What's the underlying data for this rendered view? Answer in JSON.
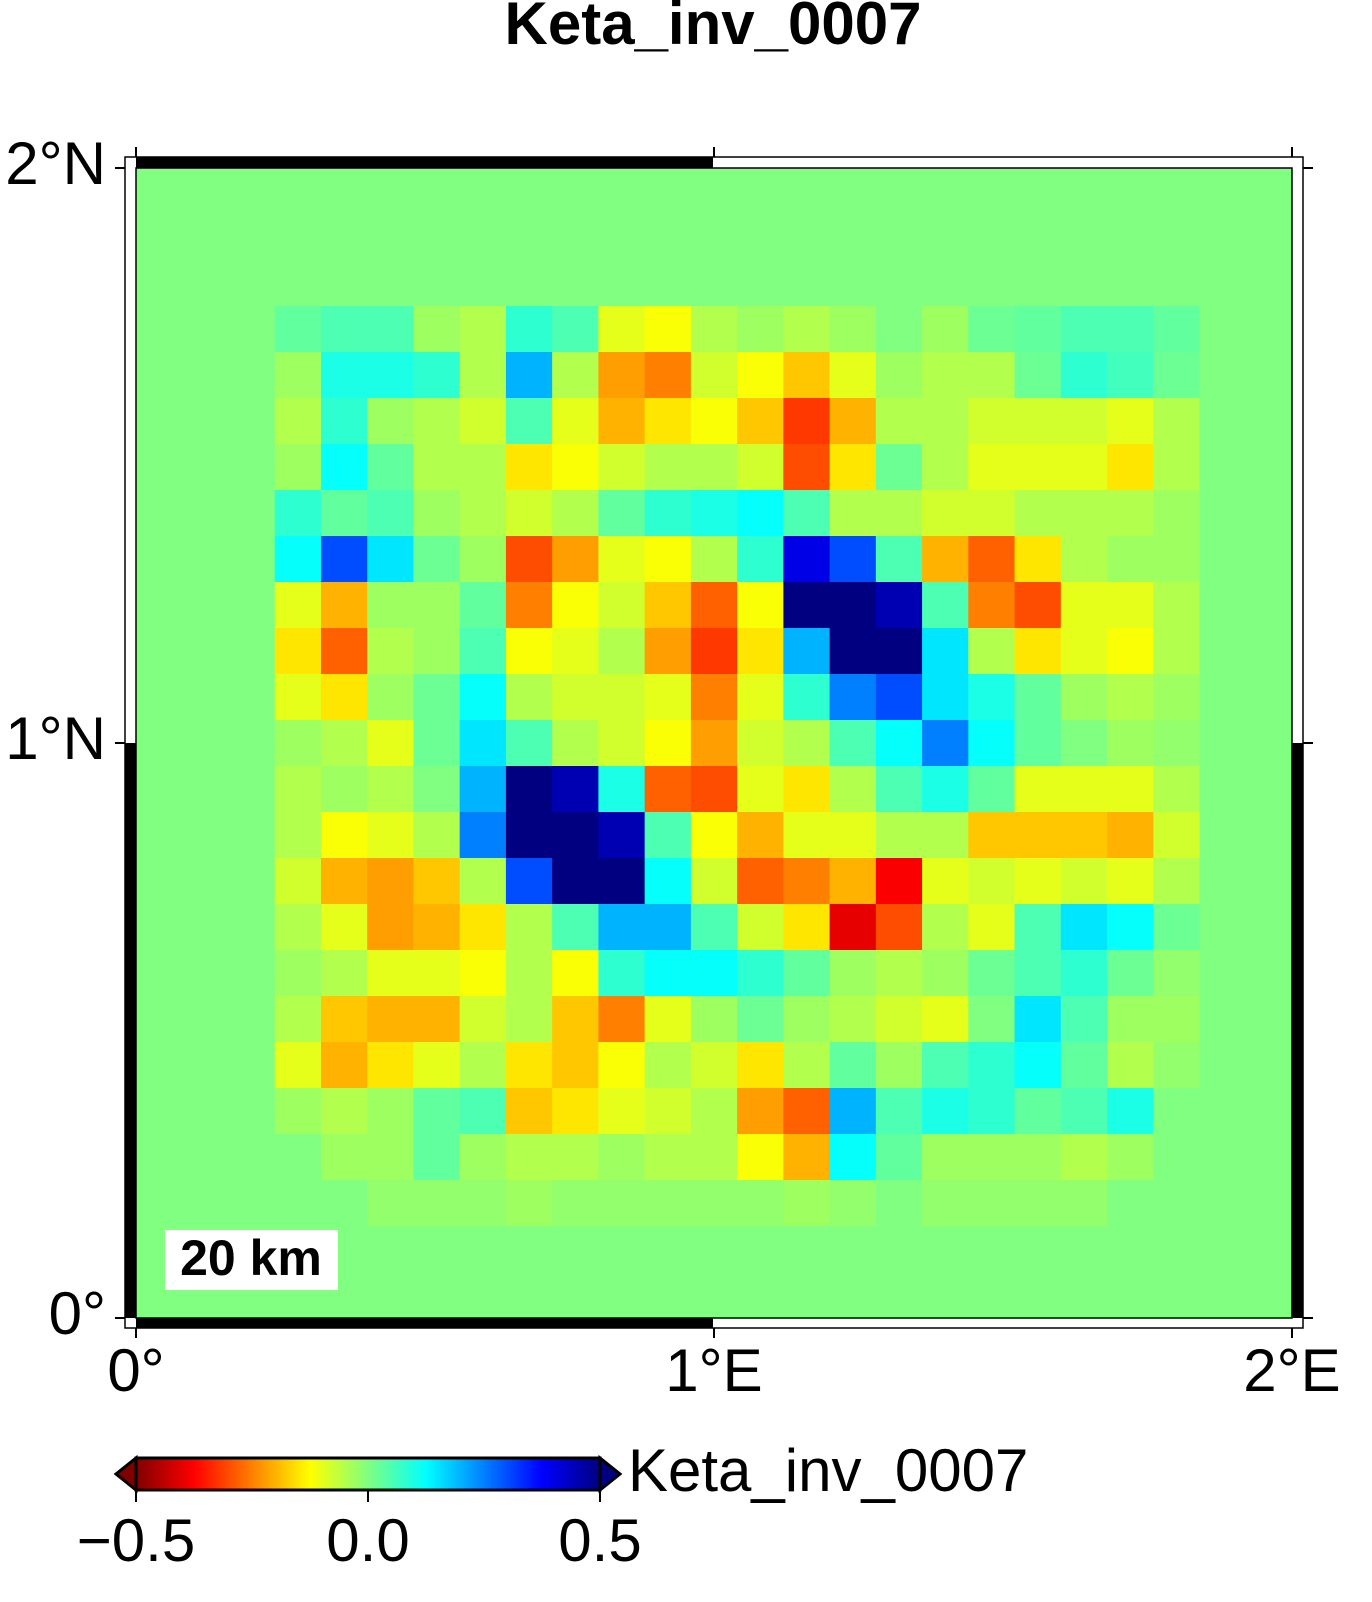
{
  "chart_data": {
    "type": "heatmap",
    "title": "Keta_inv_0007",
    "xlim": [
      0,
      2
    ],
    "ylim": [
      0,
      2
    ],
    "xticks": [
      {
        "value": 0,
        "label": "0°"
      },
      {
        "value": 1,
        "label": "1°E"
      },
      {
        "value": 2,
        "label": "2°E"
      }
    ],
    "yticks": [
      {
        "value": 0,
        "label": "0°"
      },
      {
        "value": 1,
        "label": "1°N"
      },
      {
        "value": 2,
        "label": "2°N"
      }
    ],
    "scale_label": "20 km",
    "colorbar": {
      "label": "Keta_inv_0007",
      "lim": [
        -0.5,
        0.5
      ],
      "ticks": [
        {
          "value": -0.5,
          "label": "−0.5"
        },
        {
          "value": 0,
          "label": "0.0"
        },
        {
          "value": 0.5,
          "label": "0.5"
        }
      ]
    },
    "colormap": [
      "#800000",
      "#ff0000",
      "#ff8000",
      "#ffff00",
      "#80ff80",
      "#00ffff",
      "#0080ff",
      "#0000ff",
      "#000080"
    ],
    "z": [
      [
        0,
        0,
        0,
        0,
        0,
        0,
        0,
        0,
        0,
        0,
        0,
        0,
        0,
        0,
        0,
        0,
        0,
        0,
        0,
        0,
        0,
        0,
        0,
        0,
        0
      ],
      [
        0,
        0,
        0,
        0,
        0,
        0,
        0,
        0,
        0,
        0,
        0,
        0,
        0,
        0,
        0,
        0,
        0,
        0,
        0,
        0,
        0,
        0,
        0,
        0,
        0
      ],
      [
        0,
        0,
        0,
        0,
        0,
        0,
        0,
        0,
        0,
        0,
        0,
        0,
        0,
        0,
        0,
        0,
        0,
        0,
        0,
        0,
        0,
        0,
        0,
        0,
        0
      ],
      [
        0,
        0,
        0,
        0.03,
        0.05,
        0.05,
        -0.03,
        -0.05,
        0.08,
        0.05,
        -0.1,
        -0.12,
        -0.05,
        -0.03,
        -0.05,
        -0.03,
        0,
        -0.03,
        0.02,
        0.03,
        0.05,
        0.05,
        0.03,
        0,
        0
      ],
      [
        0,
        0,
        0,
        -0.03,
        0.1,
        0.1,
        0.08,
        -0.05,
        0.2,
        -0.05,
        -0.22,
        -0.25,
        -0.08,
        -0.12,
        -0.18,
        -0.1,
        -0.03,
        -0.05,
        -0.05,
        0.02,
        0.08,
        0.06,
        0.02,
        0,
        0
      ],
      [
        0,
        0,
        0,
        -0.05,
        0.08,
        -0.03,
        -0.05,
        -0.08,
        0.05,
        -0.1,
        -0.2,
        -0.15,
        -0.12,
        -0.18,
        -0.32,
        -0.2,
        -0.05,
        -0.05,
        -0.08,
        -0.08,
        -0.08,
        -0.1,
        -0.05,
        0,
        0
      ],
      [
        0,
        0,
        0,
        -0.03,
        0.12,
        0.03,
        -0.05,
        -0.05,
        -0.15,
        -0.12,
        -0.08,
        -0.05,
        -0.05,
        -0.08,
        -0.3,
        -0.15,
        0.02,
        -0.05,
        -0.1,
        -0.1,
        -0.1,
        -0.15,
        -0.05,
        0,
        0
      ],
      [
        0,
        0,
        0,
        0.08,
        0.03,
        0.05,
        -0.03,
        -0.05,
        -0.08,
        -0.05,
        0.03,
        0.08,
        0.1,
        0.12,
        0.05,
        -0.05,
        -0.05,
        -0.08,
        -0.08,
        -0.05,
        -0.05,
        -0.05,
        -0.03,
        0,
        0
      ],
      [
        0,
        0,
        0,
        0.12,
        0.3,
        0.15,
        0.02,
        -0.03,
        -0.3,
        -0.22,
        -0.1,
        -0.12,
        -0.05,
        0.08,
        0.4,
        0.3,
        0.05,
        -0.2,
        -0.28,
        -0.15,
        -0.05,
        -0.03,
        -0.03,
        0,
        0
      ],
      [
        0,
        0,
        0,
        -0.1,
        -0.2,
        -0.03,
        -0.03,
        0.03,
        -0.25,
        -0.12,
        -0.08,
        -0.18,
        -0.28,
        -0.12,
        0.5,
        0.5,
        0.45,
        0.05,
        -0.25,
        -0.3,
        -0.1,
        -0.1,
        -0.05,
        0,
        0
      ],
      [
        0,
        0,
        0,
        -0.15,
        -0.28,
        -0.05,
        -0.03,
        0.05,
        -0.12,
        -0.1,
        -0.05,
        -0.22,
        -0.32,
        -0.15,
        0.2,
        0.5,
        0.5,
        0.15,
        -0.05,
        -0.15,
        -0.1,
        -0.12,
        -0.05,
        0,
        0
      ],
      [
        0,
        0,
        0,
        -0.1,
        -0.15,
        -0.03,
        0.02,
        0.12,
        -0.05,
        -0.08,
        -0.08,
        -0.1,
        -0.25,
        -0.1,
        0.08,
        0.25,
        0.3,
        0.15,
        0.1,
        0.03,
        -0.03,
        -0.05,
        -0.03,
        0,
        0
      ],
      [
        0,
        0,
        0,
        -0.03,
        -0.05,
        -0.1,
        0.02,
        0.15,
        0.05,
        -0.05,
        -0.08,
        -0.12,
        -0.22,
        -0.08,
        -0.05,
        0.05,
        0.12,
        0.25,
        0.12,
        0.03,
        0,
        -0.03,
        -0.02,
        0,
        0
      ],
      [
        0,
        0,
        0,
        -0.05,
        -0.03,
        -0.05,
        0,
        0.2,
        0.5,
        0.45,
        0.1,
        -0.28,
        -0.3,
        -0.1,
        -0.15,
        -0.05,
        0.05,
        0.1,
        0.03,
        -0.1,
        -0.1,
        -0.1,
        -0.05,
        0,
        0
      ],
      [
        0,
        0,
        0,
        -0.05,
        -0.12,
        -0.1,
        -0.05,
        0.25,
        0.5,
        0.5,
        0.45,
        0.05,
        -0.12,
        -0.2,
        -0.1,
        -0.1,
        -0.05,
        -0.05,
        -0.18,
        -0.18,
        -0.18,
        -0.2,
        -0.08,
        0,
        0
      ],
      [
        0,
        0,
        0,
        -0.08,
        -0.2,
        -0.22,
        -0.18,
        -0.05,
        0.3,
        0.5,
        0.5,
        0.12,
        -0.08,
        -0.28,
        -0.25,
        -0.2,
        -0.38,
        -0.1,
        -0.08,
        -0.1,
        -0.08,
        -0.1,
        -0.05,
        0,
        0
      ],
      [
        0,
        0,
        0,
        -0.05,
        -0.1,
        -0.22,
        -0.2,
        -0.15,
        -0.05,
        0.05,
        0.2,
        0.2,
        0.05,
        -0.08,
        -0.15,
        -0.4,
        -0.3,
        -0.05,
        -0.1,
        0.05,
        0.15,
        0.12,
        0.02,
        0,
        0
      ],
      [
        0,
        0,
        0,
        -0.03,
        -0.05,
        -0.1,
        -0.1,
        -0.12,
        -0.05,
        -0.12,
        0.08,
        0.12,
        0.12,
        0.08,
        0.03,
        -0.03,
        -0.05,
        -0.03,
        0.02,
        0.05,
        0.08,
        0.02,
        -0.02,
        0,
        0
      ],
      [
        0,
        0,
        0,
        -0.05,
        -0.18,
        -0.2,
        -0.2,
        -0.08,
        -0.05,
        -0.18,
        -0.25,
        -0.1,
        -0.03,
        0.02,
        -0.03,
        -0.05,
        -0.08,
        -0.1,
        0,
        0.15,
        0.05,
        -0.03,
        -0.03,
        0,
        0
      ],
      [
        0,
        0,
        0,
        -0.1,
        -0.2,
        -0.15,
        -0.1,
        -0.05,
        -0.15,
        -0.18,
        -0.12,
        -0.05,
        -0.08,
        -0.15,
        -0.05,
        0.03,
        -0.03,
        0.05,
        0.08,
        0.12,
        0.03,
        -0.05,
        -0.02,
        0,
        0
      ],
      [
        0,
        0,
        0,
        -0.03,
        -0.05,
        -0.03,
        0.03,
        0.05,
        -0.18,
        -0.15,
        -0.1,
        -0.08,
        -0.05,
        -0.22,
        -0.28,
        0.2,
        0.05,
        0.1,
        0.08,
        0.03,
        0.05,
        0.1,
        0,
        0,
        0
      ],
      [
        0,
        0,
        0,
        0,
        -0.03,
        -0.03,
        0.03,
        -0.03,
        -0.05,
        -0.05,
        -0.03,
        -0.05,
        -0.05,
        -0.12,
        -0.2,
        0.12,
        0.03,
        -0.03,
        -0.03,
        -0.03,
        -0.05,
        -0.03,
        0,
        0,
        0
      ],
      [
        0,
        0,
        0,
        0,
        0,
        -0.02,
        -0.02,
        -0.02,
        -0.03,
        -0.02,
        -0.02,
        -0.02,
        -0.02,
        -0.02,
        -0.03,
        -0.02,
        0,
        -0.02,
        -0.02,
        -0.02,
        -0.02,
        0,
        0,
        0,
        0
      ],
      [
        0,
        0,
        0,
        0,
        0,
        0,
        0,
        0,
        0,
        0,
        0,
        0,
        0,
        0,
        0,
        0,
        0,
        0,
        0,
        0,
        0,
        0,
        0,
        0,
        0
      ],
      [
        0,
        0,
        0,
        0,
        0,
        0,
        0,
        0,
        0,
        0,
        0,
        0,
        0,
        0,
        0,
        0,
        0,
        0,
        0,
        0,
        0,
        0,
        0,
        0,
        0
      ]
    ]
  }
}
